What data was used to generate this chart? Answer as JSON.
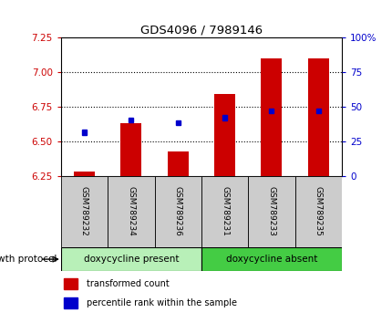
{
  "title": "GDS4096 / 7989146",
  "samples": [
    "GSM789232",
    "GSM789234",
    "GSM789236",
    "GSM789231",
    "GSM789233",
    "GSM789235"
  ],
  "bar_base": 6.25,
  "bar_tops": [
    6.28,
    6.63,
    6.43,
    6.84,
    7.1,
    7.1
  ],
  "percentile_values": [
    6.565,
    6.655,
    6.635,
    6.67,
    6.72,
    6.72
  ],
  "ylim_left": [
    6.25,
    7.25
  ],
  "ylim_right": [
    0,
    100
  ],
  "yticks_left": [
    6.25,
    6.5,
    6.75,
    7.0,
    7.25
  ],
  "yticks_right": [
    0,
    25,
    50,
    75,
    100
  ],
  "ytick_labels_right": [
    "0",
    "25",
    "50",
    "75",
    "100%"
  ],
  "group1_label": "doxycycline present",
  "group2_label": "doxycycline absent",
  "group1_indices": [
    0,
    1,
    2
  ],
  "group2_indices": [
    3,
    4,
    5
  ],
  "bar_color": "#cc0000",
  "square_color": "#0000cc",
  "group1_bg": "#b8f0b8",
  "group2_bg": "#44cc44",
  "xlabel_label": "growth protocol",
  "legend_red_label": "transformed count",
  "legend_blue_label": "percentile rank within the sample",
  "bar_width": 0.45,
  "tick_color_left": "#cc0000",
  "tick_color_right": "#0000cc",
  "label_bg": "#cccccc",
  "grid_dotted_at": [
    6.5,
    6.75,
    7.0
  ]
}
